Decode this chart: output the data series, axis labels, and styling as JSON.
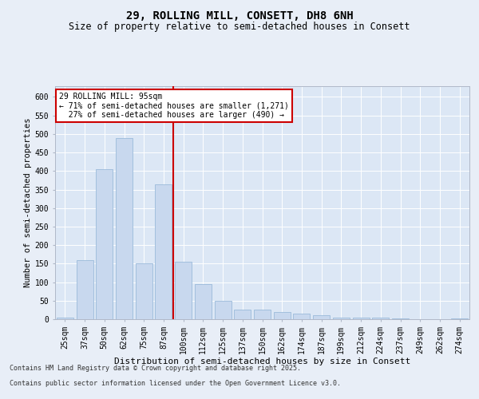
{
  "title1": "29, ROLLING MILL, CONSETT, DH8 6NH",
  "title2": "Size of property relative to semi-detached houses in Consett",
  "xlabel": "Distribution of semi-detached houses by size in Consett",
  "ylabel": "Number of semi-detached properties",
  "categories": [
    "25sqm",
    "37sqm",
    "50sqm",
    "62sqm",
    "75sqm",
    "87sqm",
    "100sqm",
    "112sqm",
    "125sqm",
    "137sqm",
    "150sqm",
    "162sqm",
    "174sqm",
    "187sqm",
    "199sqm",
    "212sqm",
    "224sqm",
    "237sqm",
    "249sqm",
    "262sqm",
    "274sqm"
  ],
  "values": [
    5,
    160,
    405,
    490,
    150,
    365,
    155,
    95,
    50,
    25,
    25,
    20,
    15,
    10,
    5,
    5,
    5,
    2,
    1,
    1,
    2
  ],
  "bar_color": "#c8d8ee",
  "bar_edge_color": "#9bbada",
  "vline_index": 6,
  "vline_color": "#cc0000",
  "annotation_line1": "29 ROLLING MILL: 95sqm",
  "annotation_line2": "← 71% of semi-detached houses are smaller (1,271)",
  "annotation_line3": "  27% of semi-detached houses are larger (490) →",
  "annotation_box_color": "#ffffff",
  "annotation_box_edge": "#cc0000",
  "ylim": [
    0,
    630
  ],
  "yticks": [
    0,
    50,
    100,
    150,
    200,
    250,
    300,
    350,
    400,
    450,
    500,
    550,
    600
  ],
  "footnote1": "Contains HM Land Registry data © Crown copyright and database right 2025.",
  "footnote2": "Contains public sector information licensed under the Open Government Licence v3.0.",
  "background_color": "#e8eef7",
  "plot_bg_color": "#dce7f5",
  "grid_color": "#ffffff",
  "title1_fontsize": 10,
  "title2_fontsize": 8.5,
  "xlabel_fontsize": 8,
  "ylabel_fontsize": 7.5,
  "tick_fontsize": 7,
  "annot_fontsize": 7,
  "footnote_fontsize": 6
}
